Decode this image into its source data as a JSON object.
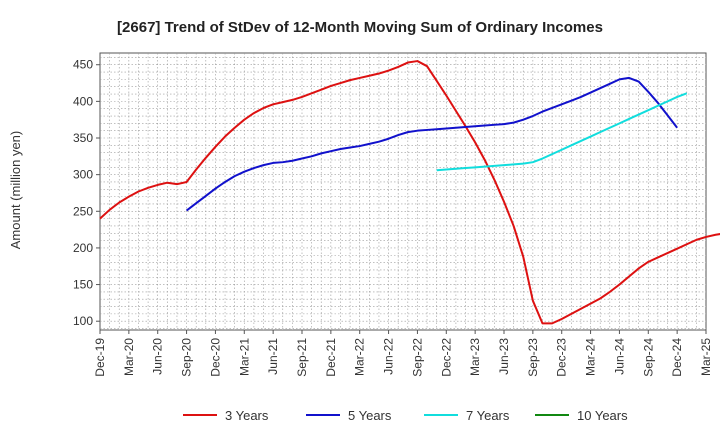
{
  "chart_data": {
    "type": "line",
    "title": "[2667]  Trend of StDev of 12-Month Moving Sum of Ordinary Incomes",
    "ylabel": "Amount (million yen)",
    "xlabel": "",
    "ylim": [
      88,
      466
    ],
    "y_ticks": [
      100,
      150,
      200,
      250,
      300,
      350,
      400,
      450
    ],
    "x_ticks": [
      "Dec-19",
      "Mar-20",
      "Jun-20",
      "Sep-20",
      "Dec-20",
      "Mar-21",
      "Jun-21",
      "Sep-21",
      "Dec-21",
      "Mar-22",
      "Jun-22",
      "Sep-22",
      "Dec-22",
      "Mar-23",
      "Jun-23",
      "Sep-23",
      "Dec-23",
      "Mar-24",
      "Jun-24",
      "Sep-24",
      "Dec-24",
      "Mar-25"
    ],
    "grid": true,
    "legend_position": "bottom",
    "series": [
      {
        "name": "3 Years",
        "color": "#dd1111",
        "start_index": 0,
        "values": [
          240,
          252,
          262,
          270,
          277,
          282,
          286,
          289,
          287,
          290,
          307,
          323,
          338,
          352,
          364,
          375,
          384,
          391,
          396,
          399,
          402,
          406,
          411,
          416,
          421,
          425,
          429,
          432,
          435,
          438,
          442,
          447,
          453,
          455,
          448,
          428,
          408,
          387,
          366,
          344,
          320,
          293,
          263,
          230,
          188,
          128,
          97,
          97,
          103,
          110,
          117,
          124,
          131,
          140,
          150,
          161,
          172,
          181,
          187,
          193,
          199,
          205,
          211,
          215,
          218,
          220
        ]
      },
      {
        "name": "5 Years",
        "color": "#1111cc",
        "start_index": 9,
        "values": [
          251,
          261,
          271,
          281,
          290,
          298,
          304,
          309,
          313,
          316,
          317,
          319,
          322,
          325,
          329,
          332,
          335,
          337,
          339,
          342,
          345,
          349,
          354,
          358,
          360,
          361,
          362,
          363,
          364,
          365,
          366,
          367,
          368,
          369,
          371,
          375,
          380,
          386,
          391,
          396,
          401,
          406,
          412,
          418,
          424,
          430,
          432,
          427,
          413,
          398,
          381,
          364
        ]
      },
      {
        "name": "7 Years",
        "color": "#11dddd",
        "start_index": 35,
        "values": [
          306,
          307,
          308,
          309,
          310,
          311,
          312,
          313,
          314,
          315,
          317,
          322,
          328,
          334,
          340,
          346,
          352,
          358,
          364,
          370,
          376,
          382,
          388,
          394,
          400,
          406,
          411
        ]
      },
      {
        "name": "10 Years",
        "color": "#118811",
        "start_index": 0,
        "values": []
      }
    ]
  }
}
